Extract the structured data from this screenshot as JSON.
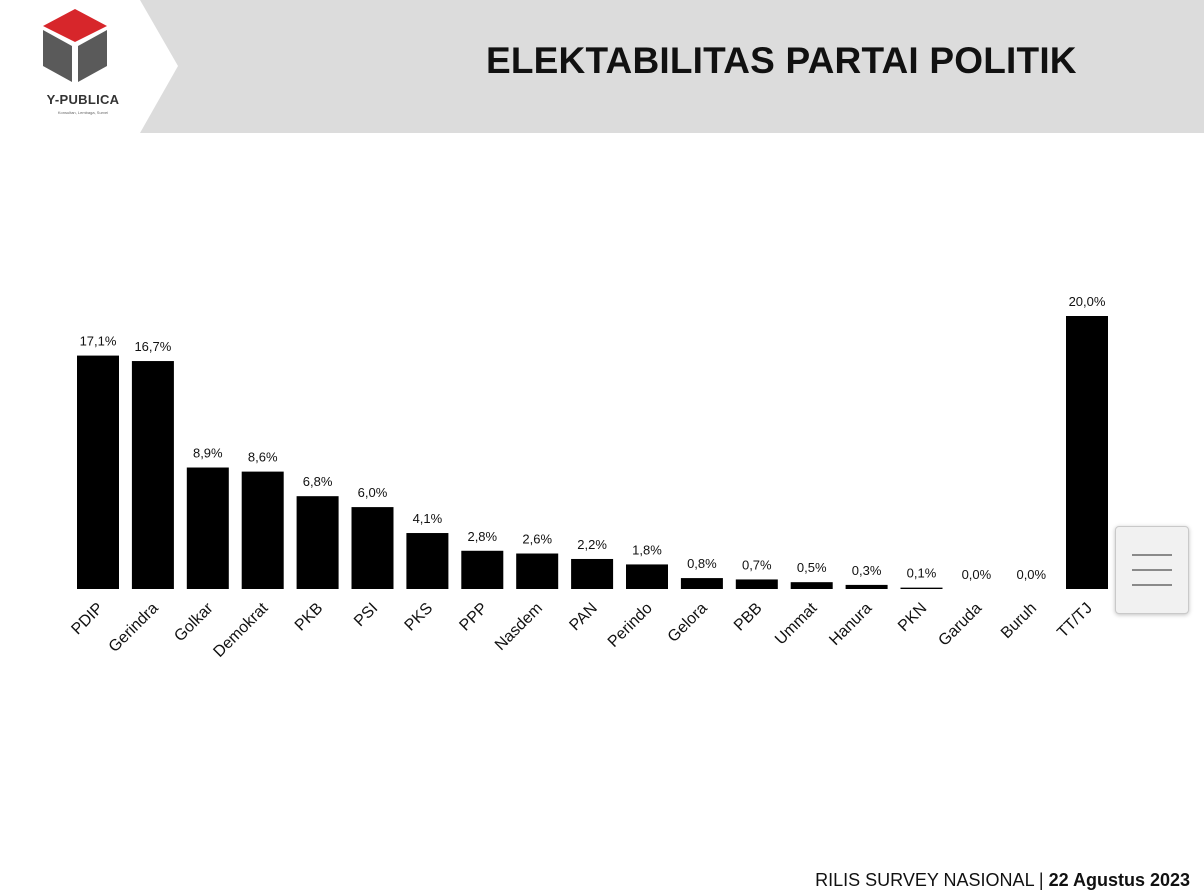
{
  "header": {
    "brand": "Y-PUBLICA",
    "tagline": "Konsultan, Lembaga, Survei",
    "title": "ELEKTABILITAS PARTAI POLITIK",
    "brand_color": "#d7262b"
  },
  "footer": {
    "label": "RILIS SURVEY NASIONAL | ",
    "date": "22 Agustus 2023"
  },
  "menu_button": {
    "icon": "hamburger-menu-icon"
  },
  "chart_data": {
    "type": "bar",
    "title": "ELEKTABILITAS PARTAI POLITIK",
    "xlabel": "",
    "ylabel": "",
    "ylim": [
      0,
      20
    ],
    "grid": false,
    "legend": "none",
    "bar_color": "#000000",
    "categories": [
      "PDIP",
      "Gerindra",
      "Golkar",
      "Demokrat",
      "PKB",
      "PSI",
      "PKS",
      "PPP",
      "Nasdem",
      "PAN",
      "Perindo",
      "Gelora",
      "PBB",
      "Ummat",
      "Hanura",
      "PKN",
      "Garuda",
      "Buruh",
      "TT/TJ"
    ],
    "values": [
      17.1,
      16.7,
      8.9,
      8.6,
      6.8,
      6.0,
      4.1,
      2.8,
      2.6,
      2.2,
      1.8,
      0.8,
      0.7,
      0.5,
      0.3,
      0.1,
      0.0,
      0.0,
      20.0
    ],
    "labels": [
      "17,1%",
      "16,7%",
      "8,9%",
      "8,6%",
      "6,8%",
      "6,0%",
      "4,1%",
      "2,8%",
      "2,6%",
      "2,2%",
      "1,8%",
      "0,8%",
      "0,7%",
      "0,5%",
      "0,3%",
      "0,1%",
      "0,0%",
      "0,0%",
      "20,0%"
    ]
  }
}
